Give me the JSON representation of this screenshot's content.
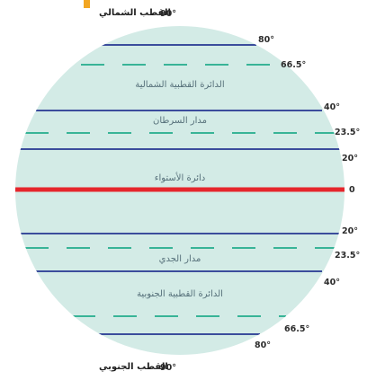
{
  "title": {
    "north_pole": "القطب الشمالي",
    "north_pole_deg": "90°",
    "south_pole": "القطب الجنوبي",
    "south_pole_deg": "90°"
  },
  "zones": {
    "north_polar": "الدائرة القطبية الشمالية",
    "cancer": "مدار السرطان",
    "equator": "دائرة الأستواء",
    "capricorn": "مدار الجدي",
    "south_polar": "الدائرة القطبية الجنوبية"
  },
  "degree_labels": {
    "n80": "80°",
    "n66_5": "66.5°",
    "n40": "40°",
    "n23_5": "23.5°",
    "n20": "20°",
    "eq0": "0",
    "s20": "20°",
    "s23_5": "23.5°",
    "s40": "40°",
    "s66_5": "66.5°",
    "s80": "80°"
  },
  "colors": {
    "globe_fill": "#d3ebe6",
    "latitude_line": "#3b4d9c",
    "dashed_line": "#38b497",
    "equator": "#e5262c",
    "accent_tick": "#f2a623"
  },
  "lines": [
    {
      "id": "n80",
      "style": "solid"
    },
    {
      "id": "n66_5",
      "style": "dashed"
    },
    {
      "id": "n40",
      "style": "solid"
    },
    {
      "id": "n23_5",
      "style": "dashed"
    },
    {
      "id": "n20",
      "style": "solid"
    },
    {
      "id": "eq0",
      "style": "equator"
    },
    {
      "id": "s20",
      "style": "solid"
    },
    {
      "id": "s23_5",
      "style": "dashed"
    },
    {
      "id": "s40",
      "style": "solid"
    },
    {
      "id": "s66_5",
      "style": "dashed"
    },
    {
      "id": "s80",
      "style": "solid"
    }
  ]
}
